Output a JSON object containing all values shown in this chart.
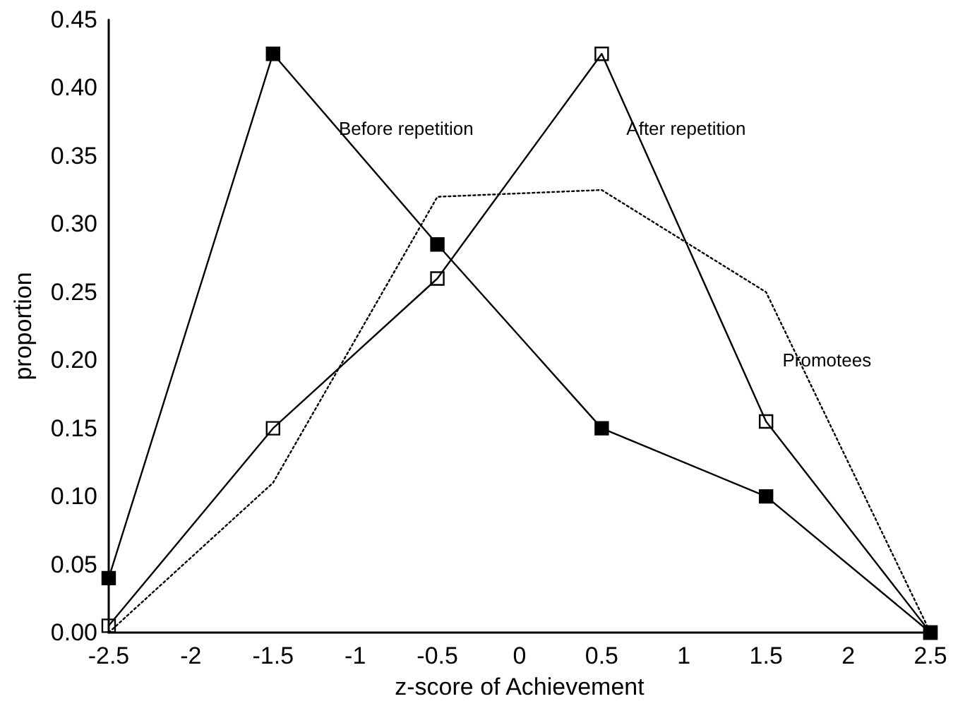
{
  "chart_data": {
    "type": "line",
    "xlabel": "z-score of Achievement",
    "ylabel": "proportion",
    "x": [
      -2.5,
      -1.5,
      -0.5,
      0.5,
      1.5,
      2.5
    ],
    "series": [
      {
        "name": "Before repetition",
        "color": "#000000",
        "marker": "square",
        "line_style": "solid",
        "values": [
          0.04,
          0.425,
          0.285,
          0.15,
          0.1,
          0
        ]
      },
      {
        "name": "After repetition",
        "color": "#000000",
        "marker": "square",
        "line_style": "solid",
        "values": [
          0.005,
          0.15,
          0.26,
          0.425,
          0.155,
          0
        ]
      },
      {
        "name": "Promotees",
        "color": "#000000",
        "marker": "none",
        "line_style": "dotted",
        "values": [
          0,
          0.11,
          0.32,
          0.325,
          0.25,
          0
        ]
      }
    ],
    "xlim": [
      -2.5,
      2.5
    ],
    "xticks": [
      -2.5,
      -2,
      -1.5,
      -1,
      -0.5,
      0,
      0.5,
      1,
      1.5,
      2,
      2.5
    ],
    "ylim": [
      0,
      0.45
    ],
    "yticks": [
      {
        "value": 0,
        "label": "0.00"
      },
      {
        "value": 0.05,
        "label": "0.05"
      },
      {
        "value": 0.1,
        "label": "0.10"
      },
      {
        "value": 0.15,
        "label": "0.15"
      },
      {
        "value": 0.2,
        "label": "0.20"
      },
      {
        "value": 0.25,
        "label": "0.25"
      },
      {
        "value": 0.3,
        "label": "0.30"
      },
      {
        "value": 0.35,
        "label": "0.35"
      },
      {
        "value": 0.4,
        "label": "0.40"
      },
      {
        "value": 0.45,
        "label": "0.45"
      }
    ],
    "grid": false,
    "legend": false
  }
}
